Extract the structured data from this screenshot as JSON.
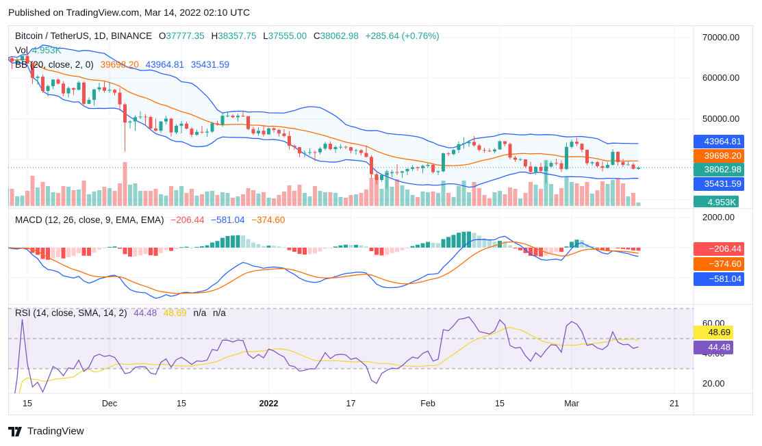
{
  "published": "Published on TradingView.com, Mar 14, 2022 02:10 UTC",
  "footer_brand": "TradingView",
  "colors": {
    "up": "#26a69a",
    "down": "#ef5350",
    "bb_basis": "#ff6d00",
    "bb_band": "#2962ff",
    "macd": "#2962ff",
    "signal": "#ff6d00",
    "rsi": "#7e57c2",
    "rsi_sma": "#f5d52b"
  },
  "legend": {
    "symbol": "Bitcoin / TetherUS, 1D, BINANCE",
    "o_label": "O",
    "o": "37777.35",
    "h_label": "H",
    "h": "38357.75",
    "l_label": "L",
    "l": "37555.00",
    "c_label": "C",
    "c": "38062.98",
    "change": "+285.64 (+0.76%)",
    "vol_label": "Vol",
    "vol": "4.953K",
    "bb_label": "BB (20, close, 2, 0)",
    "bb_basis": "39698.20",
    "bb_upper": "43964.81",
    "bb_lower": "35431.59",
    "macd_label": "MACD (12, 26, close, 9, EMA, EMA)",
    "macd_hist": "−206.44",
    "macd": "−581.04",
    "macd_signal": "−374.60",
    "rsi_label": "RSI (14, close, SMA, 14, 2)",
    "rsi": "44.48",
    "rsi_sma": "48.69",
    "na1": "n/a",
    "na2": "n/a"
  },
  "price_tags": {
    "bb_upper": "43964.81",
    "bb_basis": "39698.20",
    "last": "38062.98",
    "bb_lower": "35431.59",
    "volume": "4.953K"
  },
  "macd_tags": {
    "hist": "−206.44",
    "signal": "−374.60",
    "macd": "−581.04"
  },
  "rsi_tags": {
    "sma": "48.69",
    "rsi": "44.48"
  },
  "chart_data": {
    "type": "candlestick",
    "title": "Bitcoin / TetherUS, 1D, BINANCE",
    "grid": true,
    "price_ticks": [
      "70000.00",
      "60000.00",
      "50000.00"
    ],
    "macd_ticks": [
      "2000.00"
    ],
    "rsi_ticks": [
      "60.00",
      "40.00",
      "20.00"
    ],
    "rsi_bands": [
      70,
      50,
      30
    ],
    "x_ticks": [
      {
        "label": "15",
        "date": "2021-11-15"
      },
      {
        "label": "Dec",
        "date": "2021-12-01"
      },
      {
        "label": "15",
        "date": "2021-12-15"
      },
      {
        "label": "2022",
        "date": "2022-01-01",
        "bold": true
      },
      {
        "label": "17",
        "date": "2022-01-17"
      },
      {
        "label": "Feb",
        "date": "2022-02-01"
      },
      {
        "label": "15",
        "date": "2022-02-15"
      },
      {
        "label": "Mar",
        "date": "2022-03-01"
      },
      {
        "label": "21",
        "date": "2022-03-21"
      }
    ],
    "first_date": "2021-11-11",
    "ohlc": [
      [
        64900,
        65600,
        64100,
        64950
      ],
      [
        64950,
        65450,
        62300,
        64150
      ],
      [
        64150,
        64950,
        63400,
        64400
      ],
      [
        64400,
        65500,
        63600,
        65500
      ],
      [
        65500,
        66400,
        63400,
        63600
      ],
      [
        63600,
        63600,
        58600,
        60100
      ],
      [
        60100,
        60800,
        58400,
        60400
      ],
      [
        60400,
        60900,
        56500,
        56900
      ],
      [
        56900,
        58400,
        55600,
        58100
      ],
      [
        58100,
        59800,
        57400,
        59700
      ],
      [
        59700,
        60000,
        58500,
        58700
      ],
      [
        58700,
        59300,
        55600,
        56300
      ],
      [
        56300,
        58000,
        55300,
        57600
      ],
      [
        57600,
        57800,
        55900,
        57200
      ],
      [
        57200,
        59400,
        57000,
        58960
      ],
      [
        58960,
        59200,
        53500,
        53730
      ],
      [
        53730,
        55300,
        53700,
        54700
      ],
      [
        54700,
        57400,
        53300,
        57270
      ],
      [
        57270,
        58900,
        56700,
        57800
      ],
      [
        57800,
        59200,
        56500,
        56950
      ],
      [
        56950,
        59100,
        56400,
        57180
      ],
      [
        57180,
        57400,
        55800,
        56480
      ],
      [
        56480,
        57600,
        52000,
        53600
      ],
      [
        53600,
        53900,
        42000,
        49150
      ],
      [
        49150,
        49700,
        47700,
        49400
      ],
      [
        49400,
        50900,
        47100,
        50450
      ],
      [
        50450,
        51900,
        50000,
        50600
      ],
      [
        50600,
        51200,
        48600,
        50500
      ],
      [
        50500,
        50800,
        47300,
        47670
      ],
      [
        47670,
        50100,
        46900,
        47140
      ],
      [
        47140,
        49500,
        46600,
        49390
      ],
      [
        49390,
        50800,
        48700,
        50100
      ],
      [
        50100,
        50300,
        45700,
        46700
      ],
      [
        46700,
        48700,
        46300,
        48350
      ],
      [
        48350,
        49500,
        46500,
        48860
      ],
      [
        48860,
        49400,
        47500,
        47630
      ],
      [
        47630,
        48000,
        45500,
        46130
      ],
      [
        46130,
        47400,
        45900,
        46830
      ],
      [
        46830,
        48300,
        46400,
        46680
      ],
      [
        46680,
        47600,
        45600,
        46900
      ],
      [
        46900,
        49300,
        46600,
        48940
      ],
      [
        48940,
        49600,
        48400,
        48620
      ],
      [
        48620,
        51400,
        48100,
        50820
      ],
      [
        50820,
        51800,
        50400,
        50820
      ],
      [
        50820,
        51200,
        50200,
        50430
      ],
      [
        50430,
        51300,
        49400,
        50800
      ],
      [
        50800,
        52100,
        50500,
        50700
      ],
      [
        50700,
        50700,
        47300,
        47540
      ],
      [
        47540,
        48100,
        46100,
        46460
      ],
      [
        46460,
        47900,
        45900,
        47120
      ],
      [
        47120,
        48500,
        45700,
        46220
      ],
      [
        46220,
        47900,
        46200,
        47720
      ],
      [
        47720,
        47990,
        46650,
        47290
      ],
      [
        47290,
        47570,
        45700,
        46450
      ],
      [
        46450,
        47500,
        45500,
        45830
      ],
      [
        45830,
        47070,
        42500,
        43430
      ],
      [
        43430,
        43750,
        42400,
        43080
      ],
      [
        43080,
        43150,
        40600,
        41550
      ],
      [
        41550,
        42300,
        40500,
        41680
      ],
      [
        41680,
        42800,
        41200,
        41860
      ],
      [
        41860,
        42250,
        39650,
        41820
      ],
      [
        41820,
        43100,
        41300,
        42740
      ],
      [
        42740,
        44400,
        42300,
        43920
      ],
      [
        43920,
        44460,
        42300,
        42590
      ],
      [
        42590,
        43450,
        41700,
        43100
      ],
      [
        43100,
        43800,
        42600,
        43180
      ],
      [
        43180,
        43480,
        42600,
        43080
      ],
      [
        43080,
        43180,
        41550,
        42200
      ],
      [
        42200,
        42700,
        41250,
        42350
      ],
      [
        42350,
        42550,
        41100,
        41660
      ],
      [
        41660,
        43500,
        40550,
        40680
      ],
      [
        40680,
        41100,
        35450,
        36450
      ],
      [
        36450,
        36830,
        34000,
        35030
      ],
      [
        35030,
        36500,
        34600,
        36280
      ],
      [
        36280,
        37550,
        32900,
        36690
      ],
      [
        36690,
        37550,
        35700,
        36960
      ],
      [
        36960,
        38900,
        36250,
        36810
      ],
      [
        36810,
        37230,
        35500,
        37160
      ],
      [
        37160,
        38000,
        36150,
        37720
      ],
      [
        37720,
        38700,
        37270,
        38170
      ],
      [
        38170,
        38360,
        37350,
        37920
      ],
      [
        37920,
        38750,
        36630,
        38480
      ],
      [
        38480,
        39270,
        38000,
        38740
      ],
      [
        38740,
        38860,
        36600,
        36950
      ],
      [
        36950,
        37390,
        36250,
        37150
      ],
      [
        37150,
        41700,
        37000,
        41570
      ],
      [
        41570,
        41900,
        40900,
        41380
      ],
      [
        41380,
        42650,
        41100,
        42410
      ],
      [
        42410,
        44500,
        41650,
        43840
      ],
      [
        43840,
        45500,
        42700,
        44040
      ],
      [
        44040,
        44800,
        43150,
        44380
      ],
      [
        44380,
        45820,
        43200,
        43520
      ],
      [
        43520,
        43900,
        42000,
        42390
      ],
      [
        42390,
        43000,
        41750,
        42210
      ],
      [
        42210,
        42750,
        41870,
        42050
      ],
      [
        42050,
        42880,
        41600,
        42530
      ],
      [
        42530,
        44750,
        42430,
        44540
      ],
      [
        44540,
        44580,
        43300,
        43870
      ],
      [
        43870,
        44200,
        40100,
        40520
      ],
      [
        40520,
        40950,
        39450,
        40000
      ],
      [
        40000,
        40450,
        39640,
        40090
      ],
      [
        40090,
        40150,
        38000,
        38370
      ],
      [
        38370,
        39500,
        36800,
        37000
      ],
      [
        37000,
        38450,
        36350,
        38250
      ],
      [
        38250,
        39250,
        37040,
        37260
      ],
      [
        37260,
        39840,
        34320,
        38330
      ],
      [
        38330,
        39730,
        38010,
        39220
      ],
      [
        39220,
        40300,
        38600,
        39120
      ],
      [
        39120,
        39880,
        37000,
        37700
      ],
      [
        37700,
        44220,
        37450,
        43160
      ],
      [
        43160,
        44950,
        42800,
        44420
      ],
      [
        44420,
        45400,
        43350,
        43920
      ],
      [
        43920,
        44100,
        41830,
        42450
      ],
      [
        42450,
        42500,
        38650,
        39150
      ],
      [
        39150,
        39700,
        38560,
        39400
      ],
      [
        39400,
        39650,
        38090,
        38420
      ],
      [
        38420,
        39550,
        37150,
        37990
      ],
      [
        37990,
        39370,
        37860,
        38730
      ],
      [
        38730,
        42600,
        38650,
        41940
      ],
      [
        41940,
        42040,
        38540,
        39420
      ],
      [
        39420,
        40240,
        38220,
        38730
      ],
      [
        38730,
        39490,
        38650,
        38810
      ],
      [
        38810,
        39300,
        37580,
        37780
      ],
      [
        37777.35,
        38357.75,
        37555.0,
        38062.98
      ]
    ],
    "volume_k": [
      26,
      25,
      14,
      15,
      22,
      44,
      27,
      35,
      29,
      20,
      19,
      29,
      28,
      23,
      24,
      37,
      17,
      21,
      23,
      28,
      26,
      22,
      33,
      64,
      31,
      33,
      22,
      22,
      22,
      25,
      17,
      15,
      29,
      23,
      29,
      19,
      25,
      15,
      17,
      21,
      22,
      16,
      20,
      19,
      12,
      14,
      17,
      26,
      23,
      18,
      20,
      12,
      11,
      16,
      21,
      30,
      22,
      31,
      19,
      14,
      29,
      22,
      20,
      20,
      19,
      13,
      12,
      16,
      17,
      19,
      24,
      41,
      42,
      25,
      51,
      28,
      39,
      30,
      24,
      16,
      13,
      21,
      20,
      21,
      19,
      37,
      19,
      13,
      29,
      37,
      20,
      35,
      26,
      16,
      11,
      20,
      22,
      17,
      27,
      25,
      11,
      19,
      35,
      31,
      25,
      67,
      32,
      17,
      26,
      42,
      35,
      33,
      29,
      35,
      18,
      23,
      36,
      32,
      38,
      41,
      33,
      14,
      19,
      4.953
    ]
  }
}
